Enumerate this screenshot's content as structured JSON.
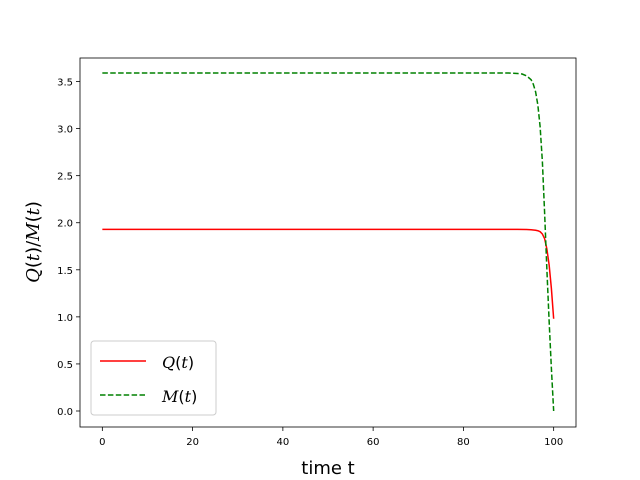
{
  "chart_data": {
    "type": "line",
    "xlabel": "time t",
    "ylabel": "Q(t)/M(t)",
    "xlim": [
      -4.95,
      104.95
    ],
    "ylim": [
      -0.17,
      3.75
    ],
    "xticks": [
      0,
      20,
      40,
      60,
      80,
      100
    ],
    "yticks": [
      0.0,
      0.5,
      1.0,
      1.5,
      2.0,
      2.5,
      3.0,
      3.5
    ],
    "ytick_labels": [
      "0.0",
      "0.5",
      "1.0",
      "1.5",
      "2.0",
      "2.5",
      "3.0",
      "3.5"
    ],
    "grid": false,
    "legend_position": "lower-left",
    "series": [
      {
        "name": "Q(t)",
        "color": "#ff0000",
        "dash": "solid",
        "x": [
          0,
          10,
          20,
          30,
          40,
          50,
          60,
          70,
          80,
          85,
          90,
          92,
          94,
          95,
          96,
          96.5,
          97,
          97.5,
          98,
          98.5,
          99,
          99.5,
          100
        ],
        "y": [
          1.93,
          1.93,
          1.93,
          1.93,
          1.93,
          1.93,
          1.93,
          1.93,
          1.93,
          1.93,
          1.93,
          1.93,
          1.928,
          1.926,
          1.92,
          1.915,
          1.905,
          1.88,
          1.83,
          1.72,
          1.55,
          1.3,
          0.98
        ]
      },
      {
        "name": "M(t)",
        "color": "#008000",
        "dash": "dashed",
        "x": [
          0,
          10,
          20,
          30,
          40,
          50,
          60,
          70,
          80,
          85,
          90,
          92,
          93,
          94,
          95,
          95.5,
          96,
          96.5,
          97,
          97.5,
          98,
          98.5,
          99,
          99.5,
          100
        ],
        "y": [
          3.59,
          3.59,
          3.59,
          3.59,
          3.59,
          3.59,
          3.59,
          3.59,
          3.59,
          3.59,
          3.59,
          3.585,
          3.58,
          3.56,
          3.52,
          3.47,
          3.39,
          3.25,
          3.02,
          2.65,
          2.1,
          1.5,
          0.95,
          0.45,
          0.0
        ]
      }
    ]
  }
}
